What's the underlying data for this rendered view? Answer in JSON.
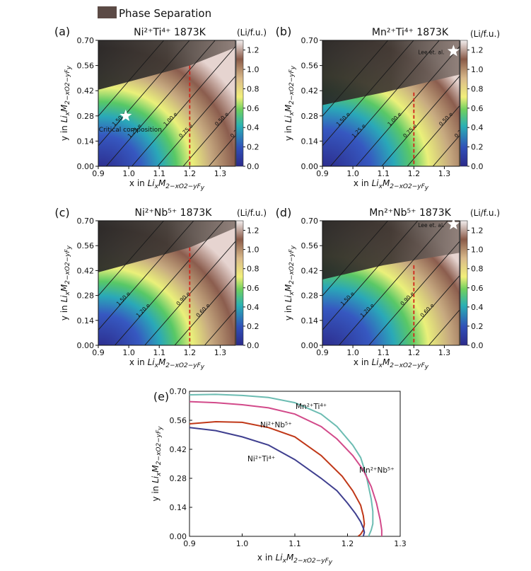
{
  "legend": {
    "label": "Phase Separation",
    "color": "#5b4a45"
  },
  "colorbar": {
    "unit": "(Li/f.u.)",
    "ticks": [
      "1.2",
      "1.0",
      "0.8",
      "0.6",
      "0.4",
      "0.2",
      "0.0"
    ]
  },
  "axes": {
    "xlabel": "x in LixM2−xO2−yFy",
    "ylabel": "y in LixM2−xO2−yFy",
    "xticks": [
      "0.9",
      "1.0",
      "1.1",
      "1.2",
      "1.3"
    ],
    "yticks": [
      "0.70",
      "0.56",
      "0.42",
      "0.28",
      "0.14",
      "0.00"
    ]
  },
  "panels": [
    {
      "letter": "(a)",
      "title": "Ni²⁺Ti⁴⁺ 1873K",
      "contours": [
        "1.75 e",
        "1.50 e",
        "1.25 e",
        "1.00 e",
        "0.75 e",
        "0.50 e",
        "0.25 e"
      ],
      "annotation": "Critical composition"
    },
    {
      "letter": "(b)",
      "title": "Mn²⁺Ti⁴⁺ 1873K",
      "contours": [
        "1.75 e",
        "1.50 e",
        "1.25 e",
        "1.00 e",
        "0.75 e",
        "0.50 e",
        "0.25 e"
      ],
      "annotation": "Lee et. al."
    },
    {
      "letter": "(c)",
      "title": "Ni²⁺Nb⁵⁺ 1873K",
      "contours": [
        "1.80 e",
        "1.50 e",
        "1.20 e",
        "0.90 e",
        "0.60 e",
        "0.30 e"
      ],
      "annotation": ""
    },
    {
      "letter": "(d)",
      "title": "Mn²⁺Nb⁵⁺ 1873K",
      "contours": [
        "1.80 e",
        "1.50 e",
        "1.20 e",
        "0.90 e",
        "0.60 e",
        "0.30 e"
      ],
      "annotation": "Lee et. al."
    }
  ],
  "chart_data": [
    {
      "type": "heatmap",
      "panel": "(a)",
      "title": "Ni²⁺Ti⁴⁺ 1873K",
      "xlim": [
        0.9,
        1.35
      ],
      "ylim": [
        0,
        0.7
      ],
      "colorbar_range": [
        0,
        1.3
      ],
      "vline_x": 1.2,
      "phase_boundary": [
        [
          1.0,
          0.47
        ],
        [
          1.2,
          0.56
        ],
        [
          1.35,
          0.66
        ]
      ],
      "critical_composition": [
        0.99,
        0.28
      ]
    },
    {
      "type": "heatmap",
      "panel": "(b)",
      "title": "Mn²⁺Ti⁴⁺ 1873K",
      "xlim": [
        0.9,
        1.35
      ],
      "ylim": [
        0,
        0.7
      ],
      "colorbar_range": [
        0,
        1.3
      ],
      "vline_x": 1.2,
      "phase_boundary": [
        [
          0.9,
          0.34
        ],
        [
          1.1,
          0.41
        ],
        [
          1.35,
          0.51
        ]
      ],
      "lee_et_al": [
        1.33,
        0.64
      ]
    },
    {
      "type": "heatmap",
      "panel": "(c)",
      "title": "Ni²⁺Nb⁵⁺ 1873K",
      "xlim": [
        0.9,
        1.35
      ],
      "ylim": [
        0,
        0.7
      ],
      "colorbar_range": [
        0,
        1.3
      ],
      "vline_x": 1.2,
      "phase_boundary": [
        [
          1.05,
          0.48
        ],
        [
          1.2,
          0.55
        ],
        [
          1.35,
          0.66
        ]
      ]
    },
    {
      "type": "heatmap",
      "panel": "(d)",
      "title": "Mn²⁺Nb⁵⁺ 1873K",
      "xlim": [
        0.9,
        1.35
      ],
      "ylim": [
        0,
        0.7
      ],
      "colorbar_range": [
        0,
        1.3
      ],
      "vline_x": 1.2,
      "phase_boundary": [
        [
          0.9,
          0.37
        ],
        [
          1.1,
          0.45
        ],
        [
          1.35,
          0.52
        ]
      ],
      "lee_et_al": [
        1.33,
        0.68
      ]
    },
    {
      "type": "line",
      "panel": "(e)",
      "xlim": [
        0.9,
        1.3
      ],
      "ylim": [
        0,
        0.7
      ],
      "xlabel": "x in LixM2-xO2-yFy",
      "ylabel": "y in LixM2-xO2-yFy",
      "xticks": [
        "0.9",
        "1.0",
        "1.1",
        "1.2",
        "1.3"
      ],
      "yticks": [
        "0.70",
        "0.56",
        "0.42",
        "0.28",
        "0.14",
        "0.00"
      ],
      "series": [
        {
          "name": "Mn²⁺Ti⁴⁺",
          "color": "#6cbcb2",
          "x": [
            0.9,
            0.95,
            1.0,
            1.05,
            1.1,
            1.15,
            1.18,
            1.21,
            1.225,
            1.235,
            1.24,
            1.245,
            1.248,
            1.248,
            1.245,
            1.24
          ],
          "y": [
            0.683,
            0.685,
            0.68,
            0.67,
            0.645,
            0.59,
            0.53,
            0.44,
            0.38,
            0.3,
            0.24,
            0.18,
            0.12,
            0.06,
            0.03,
            0.0
          ]
        },
        {
          "name": "Ni²⁺Nb⁵⁺",
          "color": "#c03818",
          "x": [
            0.9,
            0.95,
            1.0,
            1.05,
            1.1,
            1.15,
            1.19,
            1.21,
            1.225,
            1.23,
            1.232,
            1.23,
            1.225,
            1.22
          ],
          "y": [
            0.543,
            0.553,
            0.55,
            0.525,
            0.48,
            0.39,
            0.29,
            0.22,
            0.15,
            0.1,
            0.06,
            0.03,
            0.01,
            0.0
          ]
        },
        {
          "name": "Ni²⁺Ti⁴⁺",
          "color": "#3f3f8f",
          "x": [
            0.9,
            0.95,
            1.0,
            1.05,
            1.1,
            1.15,
            1.18,
            1.2,
            1.215,
            1.225,
            1.23,
            1.232,
            1.23
          ],
          "y": [
            0.525,
            0.51,
            0.48,
            0.44,
            0.37,
            0.28,
            0.22,
            0.16,
            0.11,
            0.07,
            0.04,
            0.02,
            0.0
          ]
        },
        {
          "name": "Mn²⁺Nb⁵⁺",
          "color": "#d24a8a",
          "x": [
            0.9,
            0.95,
            1.0,
            1.05,
            1.1,
            1.15,
            1.18,
            1.21,
            1.23,
            1.245,
            1.255,
            1.262,
            1.265,
            1.265
          ],
          "y": [
            0.65,
            0.645,
            0.635,
            0.62,
            0.59,
            0.53,
            0.47,
            0.39,
            0.32,
            0.24,
            0.16,
            0.08,
            0.03,
            0.0
          ]
        }
      ]
    }
  ]
}
